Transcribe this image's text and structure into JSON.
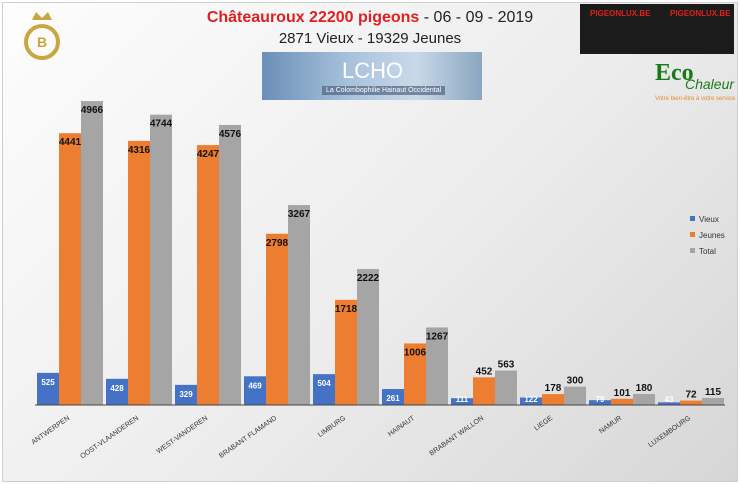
{
  "header": {
    "title_red": "Châteauroux 22200 pigeons",
    "title_rest": " - 06 - 09 - 2019",
    "subtitle": "2871 Vieux - 19329 Jeunes",
    "lcho_title": "LCHO",
    "lcho_subtitle": "La Colombophilie Hainaut Occidental",
    "pigeonlux": "PIGEONLUX.BE",
    "eco": "Eco",
    "eco2": "Chaleur",
    "eco_slogan": "Votre bien-être à votre service",
    "logo_letter": "B"
  },
  "chart_data": {
    "type": "bar",
    "title": "Châteauroux 22200 pigeons - 06 - 09 - 2019",
    "categories": [
      "ANTWERPEN",
      "OOST-VLAANDEREN",
      "WEST-VANDEREN",
      "BRABANT FLAMAND",
      "LIMBURG",
      "HAINAUT",
      "BRABANT WALLON",
      "LIEGE",
      "NAMUR",
      "LUXEMBOURG"
    ],
    "series": [
      {
        "name": "Vieux",
        "color": "#4472c4",
        "values": [
          525,
          428,
          329,
          469,
          504,
          261,
          111,
          122,
          79,
          43
        ]
      },
      {
        "name": "Jeunes",
        "color": "#ed7d31",
        "values": [
          4441,
          4316,
          4247,
          2798,
          1718,
          1006,
          452,
          178,
          101,
          72
        ]
      },
      {
        "name": "Total",
        "color": "#a5a5a5",
        "values": [
          4966,
          4744,
          4576,
          3267,
          2222,
          1267,
          563,
          300,
          180,
          115
        ]
      }
    ],
    "ylim": [
      0,
      5000
    ],
    "grid": false,
    "legend": "right"
  }
}
